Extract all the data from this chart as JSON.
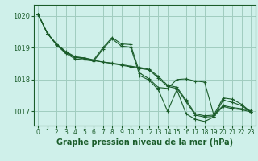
{
  "background_color": "#cff0ea",
  "grid_color": "#a0ccbf",
  "line_color": "#1a5c2a",
  "xlabel": "Graphe pression niveau de la mer (hPa)",
  "xlabel_fontsize": 7.0,
  "xlim": [
    -0.5,
    23.5
  ],
  "ylim": [
    1016.55,
    1020.35
  ],
  "yticks": [
    1017,
    1018,
    1019,
    1020
  ],
  "xticks": [
    0,
    1,
    2,
    3,
    4,
    5,
    6,
    7,
    8,
    9,
    10,
    11,
    12,
    13,
    14,
    15,
    16,
    17,
    18,
    19,
    20,
    21,
    22,
    23
  ],
  "series": [
    {
      "x": [
        0,
        1,
        2,
        3,
        4,
        5,
        6,
        7,
        8,
        9,
        10,
        11,
        12,
        13,
        14,
        15,
        16,
        17,
        18,
        19,
        20,
        21,
        22,
        23
      ],
      "y": [
        1020.05,
        1019.45,
        1019.1,
        1018.85,
        1018.7,
        1018.65,
        1018.6,
        1018.55,
        1018.5,
        1018.45,
        1018.4,
        1018.35,
        1018.3,
        1018.05,
        1017.78,
        1017.72,
        1017.3,
        1016.88,
        1016.82,
        1016.84,
        1017.15,
        1017.08,
        1017.05,
        1016.98
      ]
    },
    {
      "x": [
        0,
        1,
        2,
        3,
        4,
        5,
        6,
        7,
        8,
        9,
        10,
        11,
        12,
        13,
        14,
        15,
        16,
        17,
        18,
        19,
        20,
        21,
        22,
        23
      ],
      "y": [
        1020.05,
        1019.45,
        1019.12,
        1018.88,
        1018.72,
        1018.68,
        1018.62,
        1019.0,
        1019.32,
        1019.12,
        1019.1,
        1018.2,
        1018.02,
        1017.75,
        1017.72,
        1018.0,
        1018.02,
        1017.95,
        1017.92,
        1016.88,
        1017.42,
        1017.38,
        1017.22,
        1016.98
      ]
    },
    {
      "x": [
        0,
        1,
        2,
        3,
        4,
        5,
        6,
        7,
        8,
        9,
        10,
        11,
        12,
        13,
        14,
        15,
        16,
        17,
        18,
        19,
        20,
        21,
        22,
        23
      ],
      "y": [
        1020.05,
        1019.45,
        1019.08,
        1018.82,
        1018.65,
        1018.62,
        1018.58,
        1018.95,
        1019.28,
        1019.05,
        1019.02,
        1018.12,
        1017.98,
        1017.68,
        1017.0,
        1017.68,
        1016.92,
        1016.75,
        1016.68,
        1016.82,
        1017.35,
        1017.28,
        1017.18,
        1016.98
      ]
    },
    {
      "x": [
        0,
        1,
        2,
        3,
        4,
        5,
        6,
        7,
        8,
        9,
        10,
        11,
        12,
        13,
        14,
        15,
        16,
        17,
        18,
        19,
        20,
        21,
        22,
        23
      ],
      "y": [
        1020.05,
        1019.45,
        1019.1,
        1018.85,
        1018.7,
        1018.68,
        1018.6,
        1018.55,
        1018.52,
        1018.47,
        1018.42,
        1018.38,
        1018.32,
        1018.1,
        1017.82,
        1017.76,
        1017.35,
        1016.92,
        1016.86,
        1016.88,
        1017.18,
        1017.12,
        1017.08,
        1017.02
      ]
    }
  ]
}
